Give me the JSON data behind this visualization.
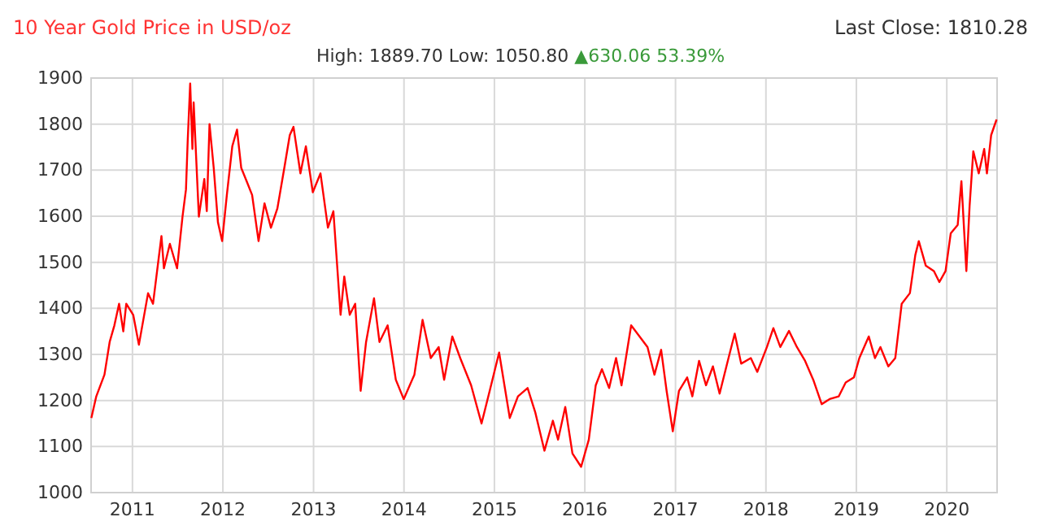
{
  "chart_data": {
    "type": "line",
    "title": "10 Year Gold Price in USD/oz",
    "subtitle": "High: 1889.70 Low: 1050.80",
    "annotations": [
      "▲630.06 53.39%",
      "Last Close: 1810.28"
    ],
    "xlim": [
      "2010-07-18",
      "2020-07-22"
    ],
    "xticks": [
      {
        "value": "2011-01-01",
        "label": "2011"
      },
      {
        "value": "2012-01-01",
        "label": "2012"
      },
      {
        "value": "2013-01-01",
        "label": "2013"
      },
      {
        "value": "2014-01-01",
        "label": "2014"
      },
      {
        "value": "2015-01-01",
        "label": "2015"
      },
      {
        "value": "2016-01-01",
        "label": "2016"
      },
      {
        "value": "2017-01-01",
        "label": "2017"
      },
      {
        "value": "2018-01-01",
        "label": "2018"
      },
      {
        "value": "2019-01-01",
        "label": "2019"
      },
      {
        "value": "2020-01-01",
        "label": "2020"
      }
    ],
    "ylim": [
      1000,
      1900
    ],
    "yticks": [
      1000,
      1100,
      1200,
      1300,
      1400,
      1500,
      1600,
      1700,
      1800,
      1900
    ],
    "grid": true,
    "marker": "none",
    "line_style": "solid",
    "x": [
      "2010-07-19",
      "2010-08-08",
      "2010-09-10",
      "2010-10-01",
      "2010-10-20",
      "2010-11-08",
      "2010-11-25",
      "2010-12-07",
      "2011-01-04",
      "2011-01-27",
      "2011-03-05",
      "2011-03-25",
      "2011-04-28",
      "2011-05-08",
      "2011-06-01",
      "2011-06-30",
      "2011-07-22",
      "2011-08-05",
      "2011-08-12",
      "2011-08-22",
      "2011-08-31",
      "2011-09-05",
      "2011-09-26",
      "2011-10-18",
      "2011-10-28",
      "2011-11-08",
      "2011-11-25",
      "2011-12-12",
      "2011-12-29",
      "2012-01-17",
      "2012-02-08",
      "2012-02-27",
      "2012-03-15",
      "2012-04-06",
      "2012-04-28",
      "2012-05-24",
      "2012-06-17",
      "2012-07-13",
      "2012-08-08",
      "2012-09-05",
      "2012-09-27",
      "2012-10-12",
      "2012-11-09",
      "2012-12-01",
      "2012-12-29",
      "2013-01-29",
      "2013-02-28",
      "2013-03-22",
      "2013-04-20",
      "2013-05-05",
      "2013-05-27",
      "2013-06-18",
      "2013-07-10",
      "2013-08-01",
      "2013-09-02",
      "2013-09-24",
      "2013-10-27",
      "2013-11-29",
      "2013-12-31",
      "2014-02-12",
      "2014-03-17",
      "2014-04-19",
      "2014-05-21",
      "2014-06-12",
      "2014-07-15",
      "2014-08-16",
      "2014-09-29",
      "2014-11-10",
      "2014-12-13",
      "2015-01-20",
      "2015-03-04",
      "2015-04-06",
      "2015-05-15",
      "2015-06-15",
      "2015-07-22",
      "2015-08-25",
      "2015-09-15",
      "2015-10-14",
      "2015-11-12",
      "2015-12-17",
      "2016-01-17",
      "2016-02-14",
      "2016-03-10",
      "2016-04-08",
      "2016-05-06",
      "2016-05-28",
      "2016-07-06",
      "2016-08-09",
      "2016-09-10",
      "2016-10-08",
      "2016-11-04",
      "2016-11-26",
      "2016-12-21",
      "2017-01-15",
      "2017-02-17",
      "2017-03-10",
      "2017-04-06",
      "2017-05-04",
      "2017-06-01",
      "2017-06-28",
      "2017-07-31",
      "2017-08-28",
      "2017-09-23",
      "2017-11-01",
      "2017-11-27",
      "2018-01-05",
      "2018-01-31",
      "2018-02-28",
      "2018-04-04",
      "2018-05-06",
      "2018-06-08",
      "2018-07-11",
      "2018-08-14",
      "2018-09-15",
      "2018-10-22",
      "2018-11-19",
      "2018-12-22",
      "2019-01-13",
      "2019-02-20",
      "2019-03-17",
      "2019-04-08",
      "2019-05-10",
      "2019-06-07",
      "2019-07-03",
      "2019-08-05",
      "2019-08-27",
      "2019-09-10",
      "2019-10-08",
      "2019-11-10",
      "2019-12-02",
      "2019-12-27",
      "2020-01-17",
      "2020-02-14",
      "2020-02-29",
      "2020-03-20",
      "2020-04-02",
      "2020-04-17",
      "2020-05-09",
      "2020-05-31",
      "2020-06-11",
      "2020-06-28",
      "2020-07-20"
    ],
    "series": [
      {
        "color": "#ff0000",
        "values": [
          1162,
          1209,
          1256,
          1327,
          1363,
          1410,
          1350,
          1410,
          1386,
          1321,
          1433,
          1410,
          1557,
          1487,
          1540,
          1487,
          1599,
          1658,
          1764,
          1888,
          1746,
          1847,
          1599,
          1681,
          1611,
          1800,
          1705,
          1587,
          1546,
          1646,
          1752,
          1788,
          1705,
          1676,
          1646,
          1546,
          1628,
          1575,
          1617,
          1705,
          1776,
          1794,
          1693,
          1752,
          1652,
          1693,
          1575,
          1611,
          1386,
          1469,
          1386,
          1410,
          1221,
          1327,
          1422,
          1327,
          1363,
          1245,
          1203,
          1256,
          1375,
          1292,
          1316,
          1245,
          1339,
          1292,
          1233,
          1150,
          1221,
          1304,
          1162,
          1209,
          1227,
          1174,
          1091,
          1156,
          1115,
          1186,
          1085,
          1056,
          1115,
          1233,
          1268,
          1227,
          1292,
          1233,
          1363,
          1339,
          1316,
          1256,
          1310,
          1221,
          1133,
          1221,
          1250,
          1209,
          1286,
          1233,
          1274,
          1215,
          1286,
          1345,
          1280,
          1292,
          1262,
          1316,
          1357,
          1316,
          1351,
          1316,
          1286,
          1245,
          1192,
          1203,
          1209,
          1239,
          1250,
          1292,
          1339,
          1292,
          1316,
          1274,
          1292,
          1410,
          1433,
          1516,
          1546,
          1493,
          1481,
          1457,
          1481,
          1563,
          1581,
          1676,
          1481,
          1622,
          1741,
          1693,
          1746,
          1693,
          1776,
          1810
        ]
      }
    ]
  }
}
